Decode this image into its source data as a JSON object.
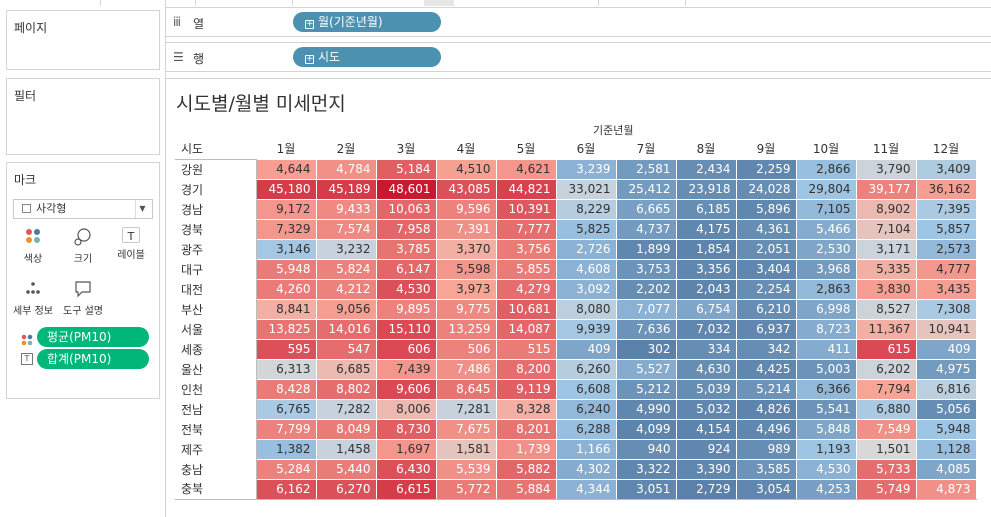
{
  "panels": {
    "pages_title": "페이지",
    "filters_title": "필터",
    "marks_title": "마크"
  },
  "shelves": {
    "columns": {
      "icon": "columns-icon",
      "label": "열",
      "pill": "월(기준년월)"
    },
    "rows": {
      "icon": "rows-icon",
      "label": "행",
      "pill": "시도"
    }
  },
  "marks": {
    "mark_type": "사각형",
    "buttons": [
      {
        "name": "color",
        "label": "색상"
      },
      {
        "name": "size",
        "label": "크기"
      },
      {
        "name": "label",
        "label": "레이블"
      },
      {
        "name": "detail",
        "label": "세부 정보"
      },
      {
        "name": "tooltip",
        "label": "도구 설명"
      }
    ],
    "fields": [
      {
        "icon": "color-dots-icon",
        "label": "평균(PM10)"
      },
      {
        "icon": "text-icon",
        "label": "합계(PM10)"
      }
    ]
  },
  "viz": {
    "title": "시도별/월별 미세먼지",
    "column_group_label": "기준년월",
    "row_header_title": "시도",
    "months": [
      "1월",
      "2월",
      "3월",
      "4월",
      "5월",
      "6월",
      "7월",
      "8월",
      "9월",
      "10월",
      "11월",
      "12월"
    ],
    "rows": [
      {
        "region": "강원",
        "values": [
          "4,644",
          "4,784",
          "5,184",
          "4,510",
          "4,621",
          "3,239",
          "2,581",
          "2,434",
          "2,259",
          "2,866",
          "3,790",
          "3,409"
        ]
      },
      {
        "region": "경기",
        "values": [
          "45,180",
          "45,189",
          "48,601",
          "43,085",
          "44,821",
          "33,021",
          "25,412",
          "23,918",
          "24,028",
          "29,804",
          "39,177",
          "36,162"
        ]
      },
      {
        "region": "경남",
        "values": [
          "9,172",
          "9,433",
          "10,063",
          "9,596",
          "10,391",
          "8,229",
          "6,665",
          "6,185",
          "5,896",
          "7,105",
          "8,902",
          "7,395"
        ]
      },
      {
        "region": "경북",
        "values": [
          "7,329",
          "7,574",
          "7,958",
          "7,391",
          "7,777",
          "5,825",
          "4,737",
          "4,175",
          "4,361",
          "5,466",
          "7,104",
          "5,857"
        ]
      },
      {
        "region": "광주",
        "values": [
          "3,146",
          "3,232",
          "3,785",
          "3,370",
          "3,756",
          "2,726",
          "1,899",
          "1,854",
          "2,051",
          "2,530",
          "3,171",
          "2,573"
        ]
      },
      {
        "region": "대구",
        "values": [
          "5,948",
          "5,824",
          "6,147",
          "5,598",
          "5,855",
          "4,608",
          "3,753",
          "3,356",
          "3,404",
          "3,968",
          "5,335",
          "4,777"
        ]
      },
      {
        "region": "대전",
        "values": [
          "4,260",
          "4,212",
          "4,530",
          "3,973",
          "4,279",
          "3,092",
          "2,202",
          "2,043",
          "2,254",
          "2,863",
          "3,830",
          "3,435"
        ]
      },
      {
        "region": "부산",
        "values": [
          "8,841",
          "9,056",
          "9,895",
          "9,775",
          "10,681",
          "8,080",
          "7,077",
          "6,754",
          "6,210",
          "6,998",
          "8,527",
          "7,308"
        ]
      },
      {
        "region": "서울",
        "values": [
          "13,825",
          "14,016",
          "15,110",
          "13,259",
          "14,087",
          "9,939",
          "7,636",
          "7,032",
          "6,937",
          "8,723",
          "11,367",
          "10,941"
        ]
      },
      {
        "region": "세종",
        "values": [
          "595",
          "547",
          "606",
          "506",
          "515",
          "409",
          "302",
          "334",
          "342",
          "411",
          "615",
          "409"
        ]
      },
      {
        "region": "울산",
        "values": [
          "6,313",
          "6,685",
          "7,439",
          "7,486",
          "8,200",
          "6,260",
          "5,527",
          "4,630",
          "4,425",
          "5,003",
          "6,202",
          "4,975"
        ]
      },
      {
        "region": "인천",
        "values": [
          "8,428",
          "8,802",
          "9,606",
          "8,645",
          "9,119",
          "6,608",
          "5,212",
          "5,039",
          "5,214",
          "6,366",
          "7,794",
          "6,816"
        ]
      },
      {
        "region": "전남",
        "values": [
          "6,765",
          "7,282",
          "8,006",
          "7,281",
          "8,328",
          "6,240",
          "4,990",
          "5,032",
          "4,826",
          "5,541",
          "6,880",
          "5,056"
        ]
      },
      {
        "region": "전북",
        "values": [
          "7,799",
          "8,049",
          "8,730",
          "7,675",
          "8,201",
          "6,288",
          "4,099",
          "4,154",
          "4,496",
          "5,848",
          "7,549",
          "5,948"
        ]
      },
      {
        "region": "제주",
        "values": [
          "1,382",
          "1,458",
          "1,697",
          "1,581",
          "1,739",
          "1,166",
          "940",
          "924",
          "989",
          "1,193",
          "1,501",
          "1,128"
        ]
      },
      {
        "region": "충남",
        "values": [
          "5,284",
          "5,440",
          "6,430",
          "5,539",
          "5,882",
          "4,302",
          "3,322",
          "3,390",
          "3,585",
          "4,530",
          "5,733",
          "4,085"
        ]
      },
      {
        "region": "충북",
        "values": [
          "6,162",
          "6,270",
          "6,615",
          "5,772",
          "5,884",
          "4,344",
          "3,051",
          "2,729",
          "3,054",
          "4,253",
          "5,749",
          "4,873"
        ]
      }
    ],
    "color_index": [
      [
        0.62,
        0.66,
        0.8,
        0.61,
        0.64,
        0.24,
        0.16,
        0.12,
        0.1,
        0.28,
        0.46,
        0.36
      ],
      [
        0.9,
        0.9,
        1.0,
        0.84,
        0.88,
        0.44,
        0.16,
        0.12,
        0.12,
        0.3,
        0.7,
        0.62
      ],
      [
        0.64,
        0.68,
        0.78,
        0.7,
        0.82,
        0.38,
        0.18,
        0.12,
        0.1,
        0.26,
        0.56,
        0.34
      ],
      [
        0.64,
        0.68,
        0.78,
        0.66,
        0.76,
        0.28,
        0.16,
        0.1,
        0.12,
        0.22,
        0.54,
        0.3
      ],
      [
        0.32,
        0.44,
        0.74,
        0.58,
        0.72,
        0.24,
        0.1,
        0.09,
        0.12,
        0.2,
        0.46,
        0.26
      ],
      [
        0.72,
        0.7,
        0.78,
        0.64,
        0.72,
        0.24,
        0.14,
        0.1,
        0.1,
        0.16,
        0.58,
        0.64
      ],
      [
        0.72,
        0.7,
        0.84,
        0.6,
        0.76,
        0.24,
        0.12,
        0.09,
        0.12,
        0.26,
        0.62,
        0.62
      ],
      [
        0.58,
        0.62,
        0.7,
        0.68,
        0.8,
        0.4,
        0.24,
        0.2,
        0.12,
        0.2,
        0.46,
        0.34
      ],
      [
        0.74,
        0.76,
        0.86,
        0.7,
        0.78,
        0.32,
        0.14,
        0.1,
        0.1,
        0.22,
        0.58,
        0.54
      ],
      [
        0.84,
        0.76,
        0.86,
        0.7,
        0.72,
        0.2,
        0.08,
        0.12,
        0.12,
        0.22,
        0.86,
        0.2
      ],
      [
        0.48,
        0.56,
        0.64,
        0.66,
        0.76,
        0.38,
        0.22,
        0.12,
        0.1,
        0.14,
        0.46,
        0.16
      ],
      [
        0.72,
        0.76,
        0.86,
        0.74,
        0.8,
        0.3,
        0.14,
        0.12,
        0.14,
        0.26,
        0.6,
        0.4
      ],
      [
        0.34,
        0.44,
        0.56,
        0.44,
        0.58,
        0.26,
        0.1,
        0.1,
        0.09,
        0.14,
        0.34,
        0.12
      ],
      [
        0.7,
        0.72,
        0.8,
        0.66,
        0.74,
        0.28,
        0.09,
        0.09,
        0.1,
        0.2,
        0.66,
        0.3
      ],
      [
        0.28,
        0.44,
        0.64,
        0.54,
        0.66,
        0.24,
        0.12,
        0.1,
        0.12,
        0.3,
        0.5,
        0.28
      ],
      [
        0.7,
        0.72,
        0.84,
        0.66,
        0.78,
        0.22,
        0.1,
        0.1,
        0.14,
        0.24,
        0.76,
        0.2
      ],
      [
        0.84,
        0.84,
        0.9,
        0.72,
        0.74,
        0.24,
        0.1,
        0.08,
        0.1,
        0.18,
        0.76,
        0.66
      ]
    ]
  }
}
